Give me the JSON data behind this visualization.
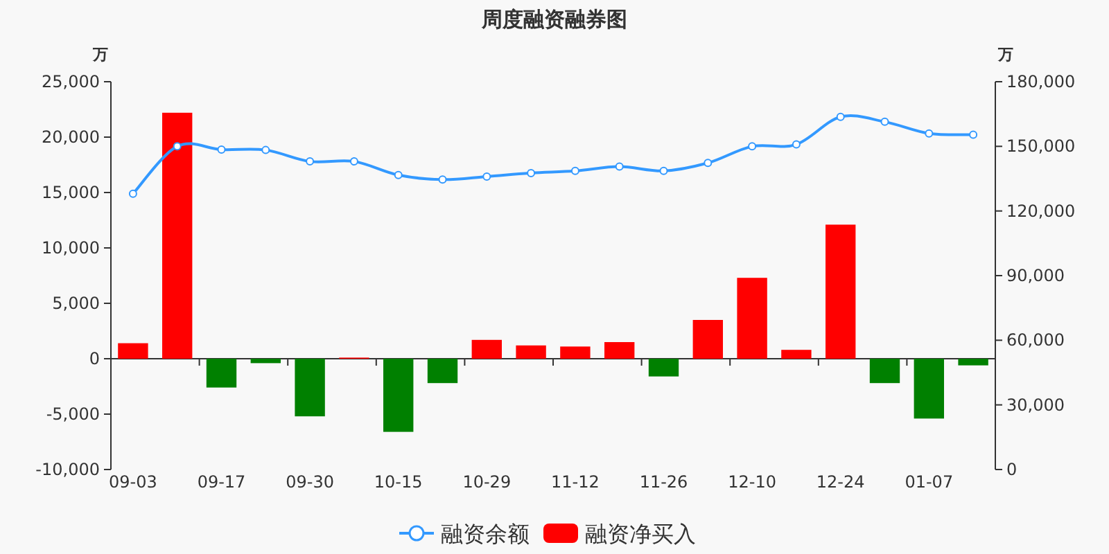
{
  "chart_data": {
    "type": "bar",
    "title": "周度融资融券图",
    "ylabel": "万",
    "y2label": "万",
    "categories": [
      "09-03",
      null,
      "09-17",
      null,
      "09-30",
      null,
      "10-15",
      null,
      "10-29",
      null,
      "11-12",
      null,
      "11-26",
      null,
      "12-10",
      null,
      "12-24",
      null,
      "01-07",
      null
    ],
    "series": [
      {
        "name": "融资余额",
        "type": "line",
        "axis": "y2",
        "color": "#3399ff",
        "values": [
          128000,
          150000,
          148500,
          148300,
          143000,
          143000,
          136700,
          134600,
          136000,
          137600,
          138600,
          140600,
          138600,
          142300,
          150000,
          150900,
          163700,
          161400,
          156000,
          155400
        ]
      },
      {
        "name": "融资净买入",
        "color": "#ff0000",
        "colors": [
          "#ff0000",
          "#ff0000",
          "#008000",
          "#008000",
          "#008000",
          "#ff0000",
          "#008000",
          "#008000",
          "#ff0000",
          "#ff0000",
          "#ff0000",
          "#ff0000",
          "#008000",
          "#ff0000",
          "#ff0000",
          "#ff0000",
          "#ff0000",
          "#008000",
          "#008000",
          "#008000"
        ],
        "values": [
          1400,
          22200,
          -2600,
          -400,
          -5200,
          100,
          -6600,
          -2200,
          1700,
          1200,
          1100,
          1500,
          -1600,
          3500,
          7300,
          800,
          12100,
          -2200,
          -5400,
          -600
        ]
      }
    ],
    "ylim": [
      -10000,
      25000
    ],
    "yticks": [
      {
        "value": -10000,
        "label": "-10,000"
      },
      {
        "value": -5000,
        "label": "-5,000"
      },
      0,
      {
        "value": 5000,
        "label": "5,000"
      },
      {
        "value": 10000,
        "label": "10,000"
      },
      {
        "value": 15000,
        "label": "15,000"
      },
      {
        "value": 20000,
        "label": "20,000"
      },
      {
        "value": 25000,
        "label": "25,000"
      }
    ],
    "y2lim": [
      0,
      180000
    ],
    "y2ticks": [
      0,
      {
        "value": 30000,
        "label": "30,000"
      },
      {
        "value": 60000,
        "label": "60,000"
      },
      {
        "value": 90000,
        "label": "90,000"
      },
      {
        "value": 120000,
        "label": "120,000"
      },
      {
        "value": 150000,
        "label": "150,000"
      },
      {
        "value": 180000,
        "label": "180,000"
      }
    ],
    "marker": "circle",
    "legend": "bottom"
  }
}
